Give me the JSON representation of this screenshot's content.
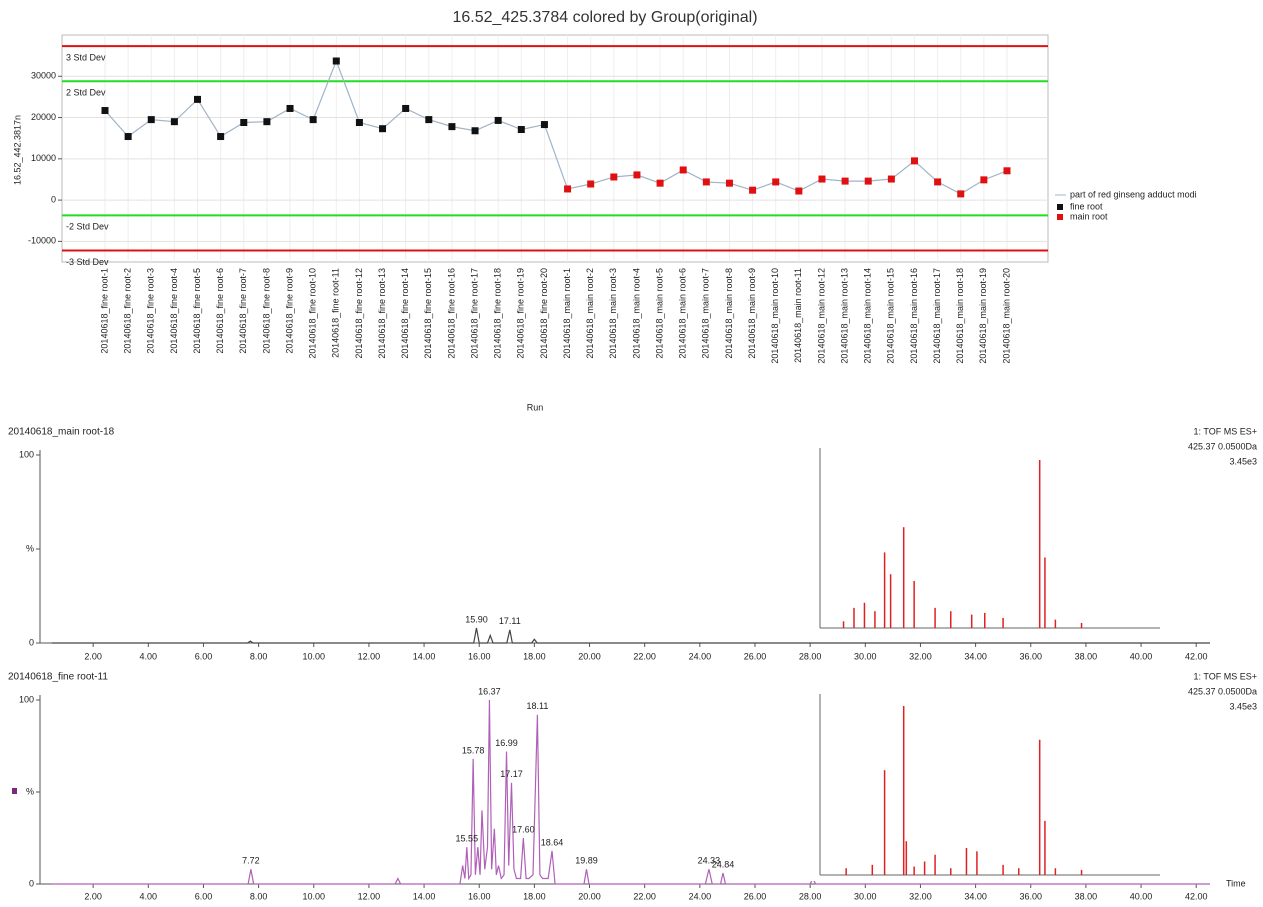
{
  "chart_data": [
    {
      "type": "line",
      "title": "16.52_425.3784 colored by Group(original)",
      "y_label": "16.52_442.3817n",
      "x_label": "Run",
      "categories": [
        "20140618_fine root-1",
        "20140618_fine root-2",
        "20140618_fine root-3",
        "20140618_fine root-4",
        "20140618_fine root-5",
        "20140618_fine root-6",
        "20140618_fine root-7",
        "20140618_fine root-8",
        "20140618_fine root-9",
        "20140618_fine root-10",
        "20140618_fine root-11",
        "20140618_fine root-12",
        "20140618_fine root-13",
        "20140618_fine root-14",
        "20140618_fine root-15",
        "20140618_fine root-16",
        "20140618_fine root-17",
        "20140618_fine root-18",
        "20140618_fine root-19",
        "20140618_fine root-20",
        "20140618_main root-1",
        "20140618_main root-2",
        "20140618_main root-3",
        "20140618_main root-4",
        "20140618_main root-5",
        "20140618_main root-6",
        "20140618_main root-7",
        "20140618_main root-8",
        "20140618_main root-9",
        "20140618_main root-10",
        "20140618_main root-11",
        "20140618_main root-12",
        "20140618_main root-13",
        "20140618_main root-14",
        "20140618_main root-15",
        "20140618_main root-16",
        "20140618_main root-17",
        "20140618_main root-18",
        "20140618_main root-19",
        "20140618_main root-20"
      ],
      "line_name": "part of red ginseng adduct modi",
      "line_color": "#9fb4c8",
      "series": [
        {
          "name": "fine root",
          "color": "#111111",
          "values": [
            21700,
            15400,
            19500,
            19000,
            24400,
            15400,
            18800,
            19000,
            22200,
            19500,
            33700,
            18800,
            17300,
            22200,
            19500,
            17800,
            16800,
            19300,
            17100,
            18300,
            null,
            null,
            null,
            null,
            null,
            null,
            null,
            null,
            null,
            null,
            null,
            null,
            null,
            null,
            null,
            null,
            null,
            null,
            null,
            null
          ]
        },
        {
          "name": "main root",
          "color": "#e01010",
          "values": [
            null,
            null,
            null,
            null,
            null,
            null,
            null,
            null,
            null,
            null,
            null,
            null,
            null,
            null,
            null,
            null,
            null,
            null,
            null,
            null,
            2700,
            3900,
            5600,
            6100,
            4100,
            7300,
            4400,
            4100,
            2400,
            4400,
            2200,
            5100,
            4600,
            4600,
            5100,
            9500,
            4400,
            1500,
            4900,
            7100
          ]
        }
      ],
      "limits": [
        {
          "label": "3 Std Dev",
          "value": 37300,
          "color": "#e01010"
        },
        {
          "label": "2 Std Dev",
          "value": 28800,
          "color": "#22dd22"
        },
        {
          "label": "-2 Std Dev",
          "value": -3700,
          "color": "#22dd22"
        },
        {
          "label": "-3 Std Dev",
          "value": -12200,
          "color": "#e01010"
        }
      ],
      "ylim": [
        -15000,
        40000
      ],
      "yticks": [
        -10000,
        0,
        10000,
        20000,
        30000
      ],
      "grid": true,
      "legend": "right"
    },
    {
      "type": "chromatogram",
      "title": "20140618_main root-18",
      "color": "#444444",
      "title_color": "#222222",
      "info": [
        "1: TOF MS ES+",
        "425.37 0.0500Da",
        "3.45e3"
      ],
      "x": [
        0.5,
        7.6,
        7.7,
        7.8,
        15.8,
        15.9,
        16.0,
        16.3,
        16.4,
        16.5,
        17.0,
        17.11,
        17.2,
        17.9,
        18.0,
        18.1,
        42.5
      ],
      "values": [
        0,
        0,
        1,
        0,
        0,
        8,
        0,
        0,
        4,
        0,
        0,
        7,
        0,
        0,
        2,
        0,
        0
      ],
      "peaks": [
        {
          "x": 15.9,
          "y": 8,
          "label": "15.90"
        },
        {
          "x": 17.11,
          "y": 7
        }
      ],
      "xlim": [
        0,
        42.5
      ],
      "ylim": [
        0,
        100
      ],
      "xticks": [
        {
          "value": 2,
          "label": "2.00"
        },
        {
          "value": 4,
          "label": "4.00"
        },
        {
          "value": 6,
          "label": "6.00"
        },
        {
          "value": 8,
          "label": "8.00"
        },
        {
          "value": 10,
          "label": "10.00"
        },
        {
          "value": 12,
          "label": "12.00"
        },
        {
          "value": 14,
          "label": "14.00"
        },
        {
          "value": 16,
          "label": "16.00"
        },
        {
          "value": 18,
          "label": "18.00"
        },
        {
          "value": 20,
          "label": "20.00"
        },
        {
          "value": 22,
          "label": "22.00"
        },
        {
          "value": 24,
          "label": "24.00"
        },
        {
          "value": 26,
          "label": "26.00"
        },
        {
          "value": 28,
          "label": "28.00"
        },
        {
          "value": 30,
          "label": "30.00"
        },
        {
          "value": 32,
          "label": "32.00"
        },
        {
          "value": 34,
          "label": "34.00"
        },
        {
          "value": 36,
          "label": "36.00"
        },
        {
          "value": 38,
          "label": "38.00"
        },
        {
          "value": 40,
          "label": "40.00"
        },
        {
          "value": 42,
          "label": "42.00"
        }
      ],
      "yticks": [
        0,
        {
          "value": 50,
          "label": "%"
        },
        100
      ],
      "inset": {
        "color": "#e02020",
        "xlim": [
          200,
          1500
        ],
        "ylim": [
          0,
          100
        ],
        "x": [
          290,
          330,
          370,
          410,
          447,
          470,
          520,
          560,
          640,
          700,
          780,
          830,
          900,
          1040,
          1060,
          1100,
          1200
        ],
        "values": [
          4,
          12,
          15,
          10,
          45,
          32,
          60,
          28,
          12,
          10,
          8,
          9,
          6,
          100,
          42,
          5,
          3
        ]
      }
    },
    {
      "type": "chromatogram",
      "title": "20140618_fine root-11",
      "color": "#b060b8",
      "title_color": "#a040a8",
      "x_label": "Time",
      "info": [
        "1: TOF MS ES+",
        "425.37 0.0500Da",
        "3.45e3"
      ],
      "x": [
        0.5,
        7.62,
        7.72,
        7.82,
        12.95,
        13.05,
        13.15,
        15.3,
        15.4,
        15.48,
        15.55,
        15.62,
        15.7,
        15.78,
        15.86,
        15.95,
        16.03,
        16.1,
        16.2,
        16.3,
        16.37,
        16.45,
        16.55,
        16.62,
        16.7,
        16.8,
        16.9,
        16.99,
        17.07,
        17.17,
        17.26,
        17.35,
        17.5,
        17.6,
        17.7,
        17.8,
        17.95,
        18.11,
        18.2,
        18.3,
        18.5,
        18.64,
        18.75,
        19.8,
        19.89,
        19.98,
        24.2,
        24.33,
        24.45,
        24.75,
        24.84,
        24.93,
        28.0,
        28.1,
        28.2,
        42.5
      ],
      "values": [
        0,
        0,
        8,
        0,
        0,
        3,
        0,
        0,
        10,
        3,
        20,
        3,
        5,
        68,
        5,
        20,
        5,
        40,
        8,
        20,
        100,
        8,
        30,
        5,
        10,
        3,
        5,
        72,
        10,
        55,
        8,
        3,
        3,
        25,
        3,
        3,
        5,
        92,
        5,
        3,
        3,
        18,
        0,
        0,
        8,
        0,
        0,
        8,
        0,
        0,
        6,
        0,
        0,
        3,
        0,
        0
      ],
      "peaks": [
        {
          "x": 7.72,
          "y": 8
        },
        {
          "x": 15.55,
          "y": 20
        },
        {
          "x": 15.78,
          "y": 68
        },
        {
          "x": 16.37,
          "y": 100
        },
        {
          "x": 16.99,
          "y": 72
        },
        {
          "x": 17.17,
          "y": 55
        },
        {
          "x": 17.6,
          "y": 25,
          "label": "17.60"
        },
        {
          "x": 18.11,
          "y": 92
        },
        {
          "x": 18.64,
          "y": 18
        },
        {
          "x": 19.89,
          "y": 8
        },
        {
          "x": 24.33,
          "y": 8
        },
        {
          "x": 24.84,
          "y": 6
        },
        {
          "x": 28.1,
          "y": 3
        }
      ],
      "xlim": [
        0,
        42.5
      ],
      "ylim": [
        0,
        100
      ],
      "xticks": [
        {
          "value": 2,
          "label": "2.00"
        },
        {
          "value": 4,
          "label": "4.00"
        },
        {
          "value": 6,
          "label": "6.00"
        },
        {
          "value": 8,
          "label": "8.00"
        },
        {
          "value": 10,
          "label": "10.00"
        },
        {
          "value": 12,
          "label": "12.00"
        },
        {
          "value": 14,
          "label": "14.00"
        },
        {
          "value": 16,
          "label": "16.00"
        },
        {
          "value": 18,
          "label": "18.00"
        },
        {
          "value": 20,
          "label": "20.00"
        },
        {
          "value": 22,
          "label": "22.00"
        },
        {
          "value": 24,
          "label": "24.00"
        },
        {
          "value": 26,
          "label": "26.00"
        },
        {
          "value": 28,
          "label": "28.00"
        },
        {
          "value": 30,
          "label": "30.00"
        },
        {
          "value": 32,
          "label": "32.00"
        },
        {
          "value": 34,
          "label": "34.00"
        },
        {
          "value": 36,
          "label": "36.00"
        },
        {
          "value": 38,
          "label": "38.00"
        },
        {
          "value": 40,
          "label": "40.00"
        },
        {
          "value": 42,
          "label": "42.00"
        }
      ],
      "yticks": [
        0,
        {
          "value": 50,
          "label": "%"
        },
        100
      ],
      "inset": {
        "color": "#e02020",
        "xlim": [
          200,
          1500
        ],
        "ylim": [
          0,
          100
        ],
        "x": [
          300,
          400,
          447,
          520,
          530,
          560,
          600,
          640,
          700,
          760,
          800,
          900,
          960,
          1040,
          1060,
          1100,
          1200
        ],
        "values": [
          4,
          6,
          62,
          100,
          20,
          5,
          8,
          12,
          4,
          16,
          14,
          6,
          4,
          80,
          32,
          4,
          3
        ]
      }
    }
  ]
}
